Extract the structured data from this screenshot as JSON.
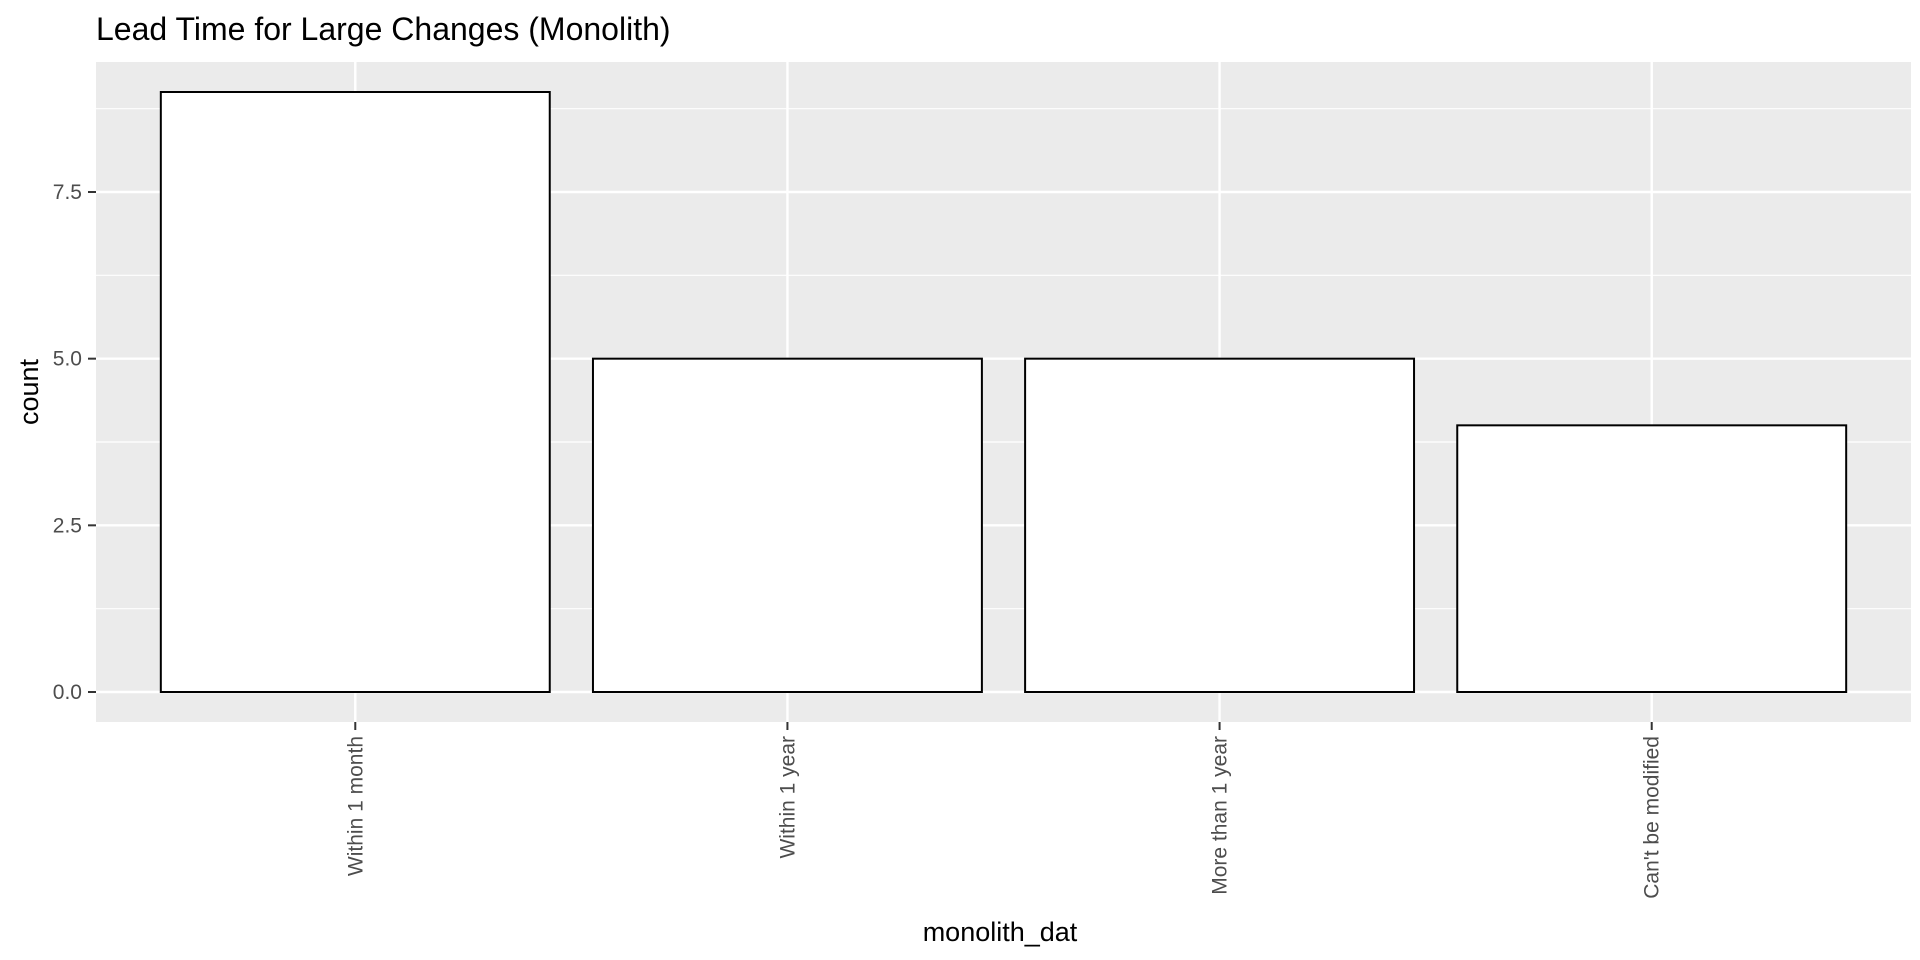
{
  "chart_data": {
    "type": "bar",
    "title": "Lead Time for Large Changes (Monolith)",
    "xlabel": "monolith_dat",
    "ylabel": "count",
    "categories": [
      "Within 1 month",
      "Within 1 year",
      "More than 1 year",
      "Can't be modified"
    ],
    "values": [
      9,
      5,
      5,
      4
    ],
    "ylim": [
      -0.45,
      9.45
    ],
    "yticks": [
      0.0,
      2.5,
      5.0,
      7.5
    ],
    "ytick_labels": [
      "0.0",
      "2.5",
      "5.0",
      "7.5"
    ],
    "grid": true,
    "legend": "none",
    "colors": {
      "panel_background": "#ebebeb",
      "grid_line": "#ffffff",
      "bar_fill": "#ffffff",
      "bar_outline": "#000000",
      "tick_mark": "#333333"
    }
  }
}
